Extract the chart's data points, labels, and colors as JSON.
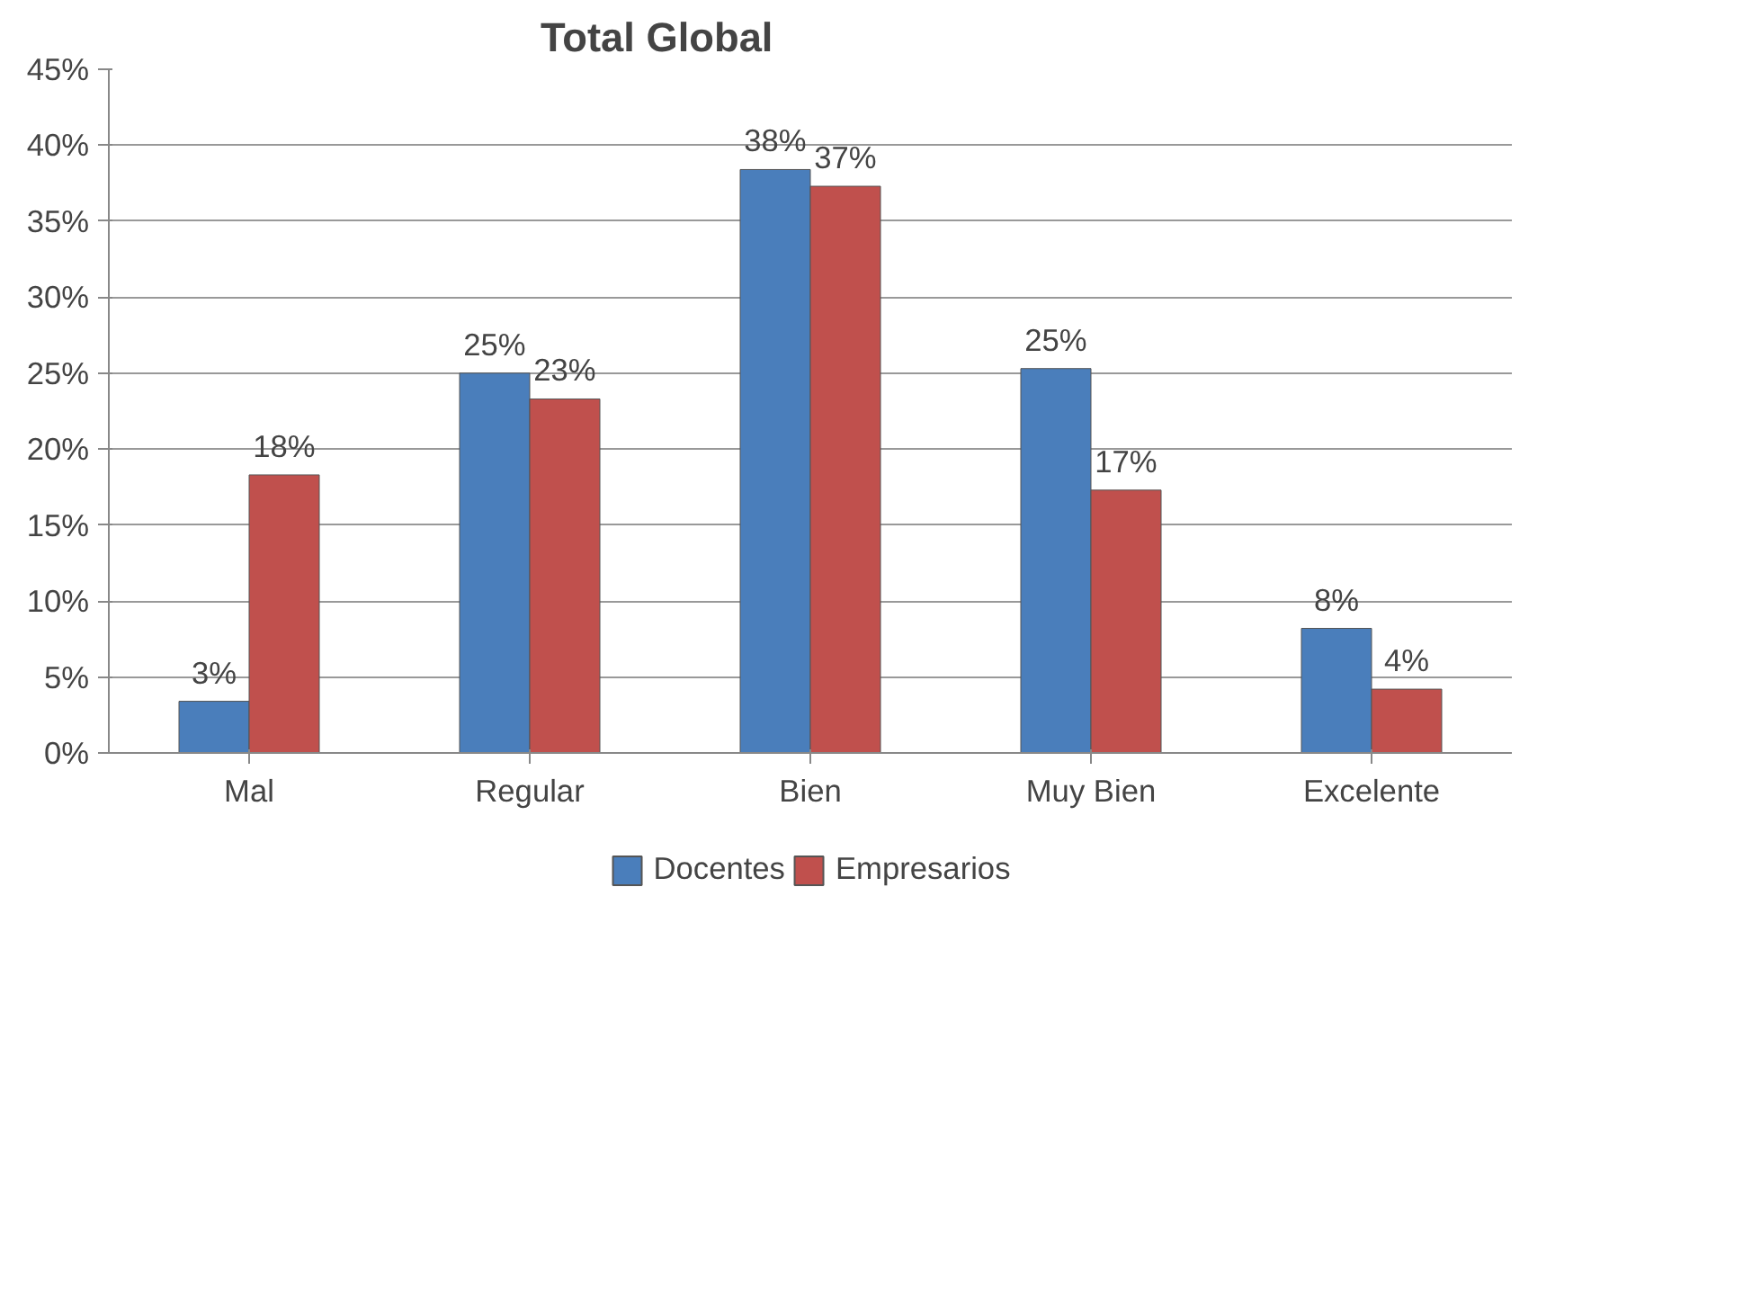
{
  "chart_data": {
    "type": "bar",
    "title": "Total Global",
    "categories": [
      "Mal",
      "Regular",
      "Bien",
      "Muy Bien",
      "Excelente"
    ],
    "series": [
      {
        "name": "Docentes",
        "color": "#4a7ebb",
        "values": [
          3.4,
          25,
          38.4,
          25.3,
          8.2
        ],
        "value_labels": [
          "3%",
          "25%",
          "38%",
          "25%",
          "8%"
        ]
      },
      {
        "name": "Empresarios",
        "color": "#c0504d",
        "values": [
          18.3,
          23.3,
          37.3,
          17.3,
          4.2
        ],
        "value_labels": [
          "18%",
          "23%",
          "37%",
          "17%",
          "4%"
        ]
      }
    ],
    "ylim": [
      0,
      45
    ],
    "yticks": [
      {
        "value": 0,
        "label": "0%"
      },
      {
        "value": 5,
        "label": "5%"
      },
      {
        "value": 10,
        "label": "10%"
      },
      {
        "value": 15,
        "label": "15%"
      },
      {
        "value": 20,
        "label": "20%"
      },
      {
        "value": 25,
        "label": "25%"
      },
      {
        "value": 30,
        "label": "30%"
      },
      {
        "value": 35,
        "label": "35%"
      },
      {
        "value": 40,
        "label": "40%"
      },
      {
        "value": 45,
        "label": "45%"
      }
    ],
    "grid": "y",
    "legend": "bottom"
  }
}
